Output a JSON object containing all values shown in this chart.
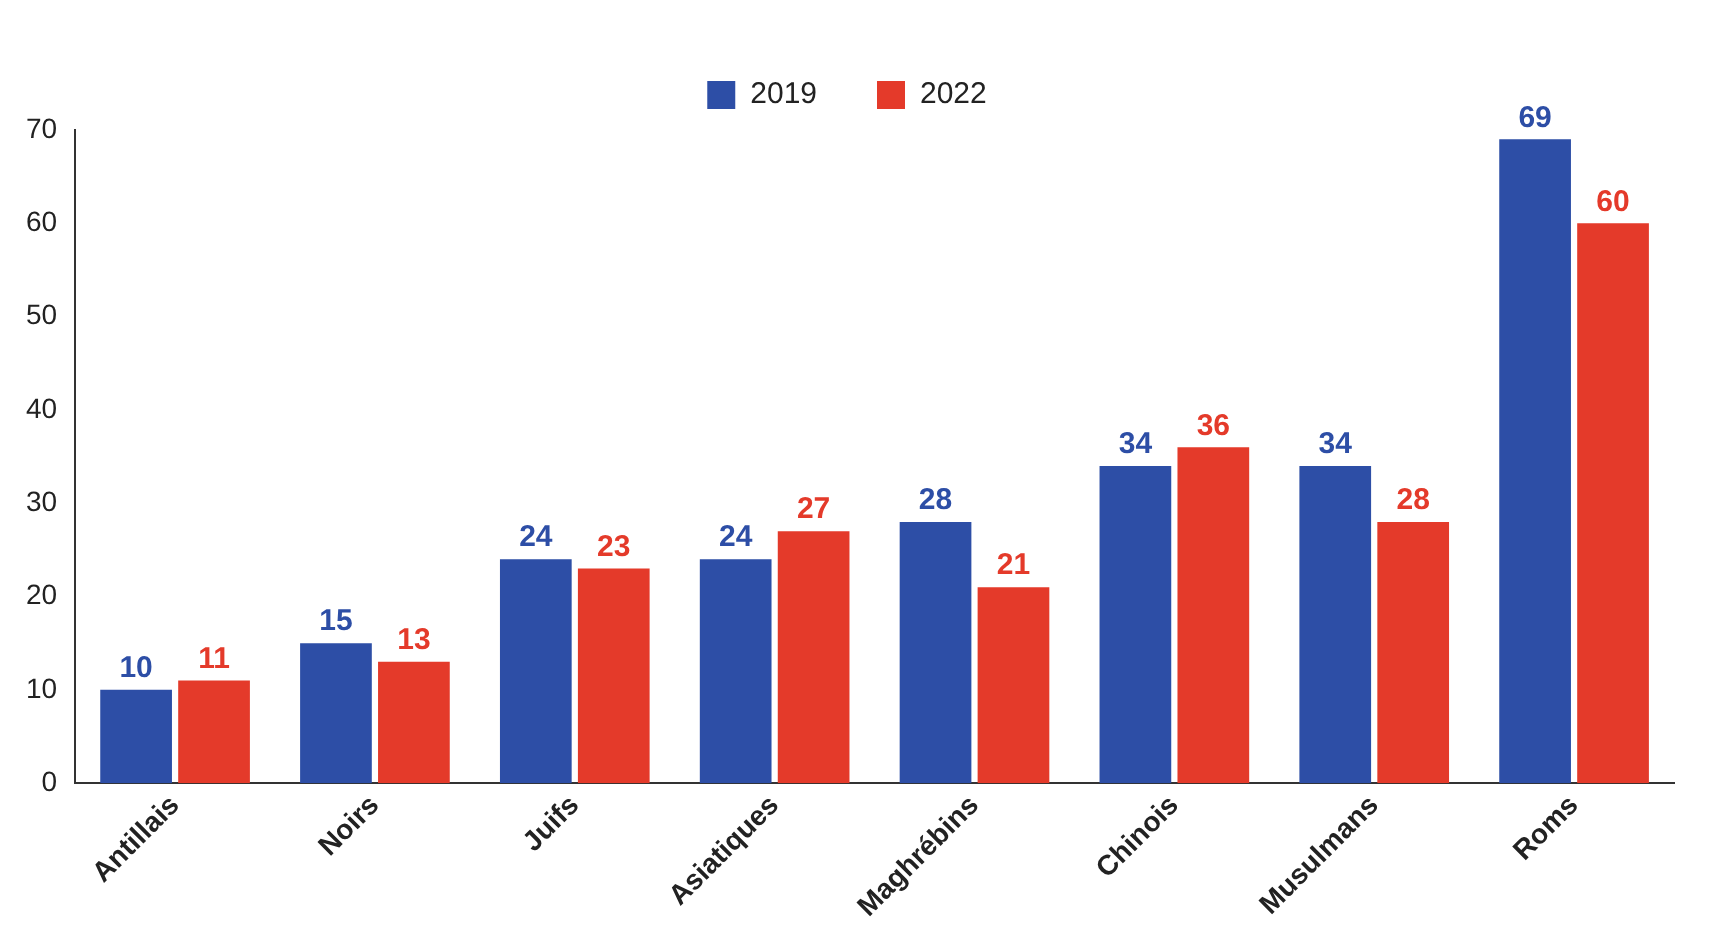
{
  "chart_data": {
    "type": "bar",
    "categories": [
      "Antillais",
      "Noirs",
      "Juifs",
      "Asiatiques",
      "Maghrébins",
      "Chinois",
      "Musulmans",
      "Roms"
    ],
    "series": [
      {
        "name": "2019",
        "color": "#2d4ea6",
        "values": [
          10,
          15,
          24,
          24,
          28,
          34,
          34,
          69
        ]
      },
      {
        "name": "2022",
        "color": "#e43a2a",
        "values": [
          11,
          13,
          23,
          27,
          21,
          36,
          28,
          60
        ]
      }
    ],
    "ylim": [
      0,
      70
    ],
    "yticks": [
      0,
      10,
      20,
      30,
      40,
      50,
      60,
      70
    ],
    "grid": false,
    "legend": "top",
    "data_labels": true
  }
}
